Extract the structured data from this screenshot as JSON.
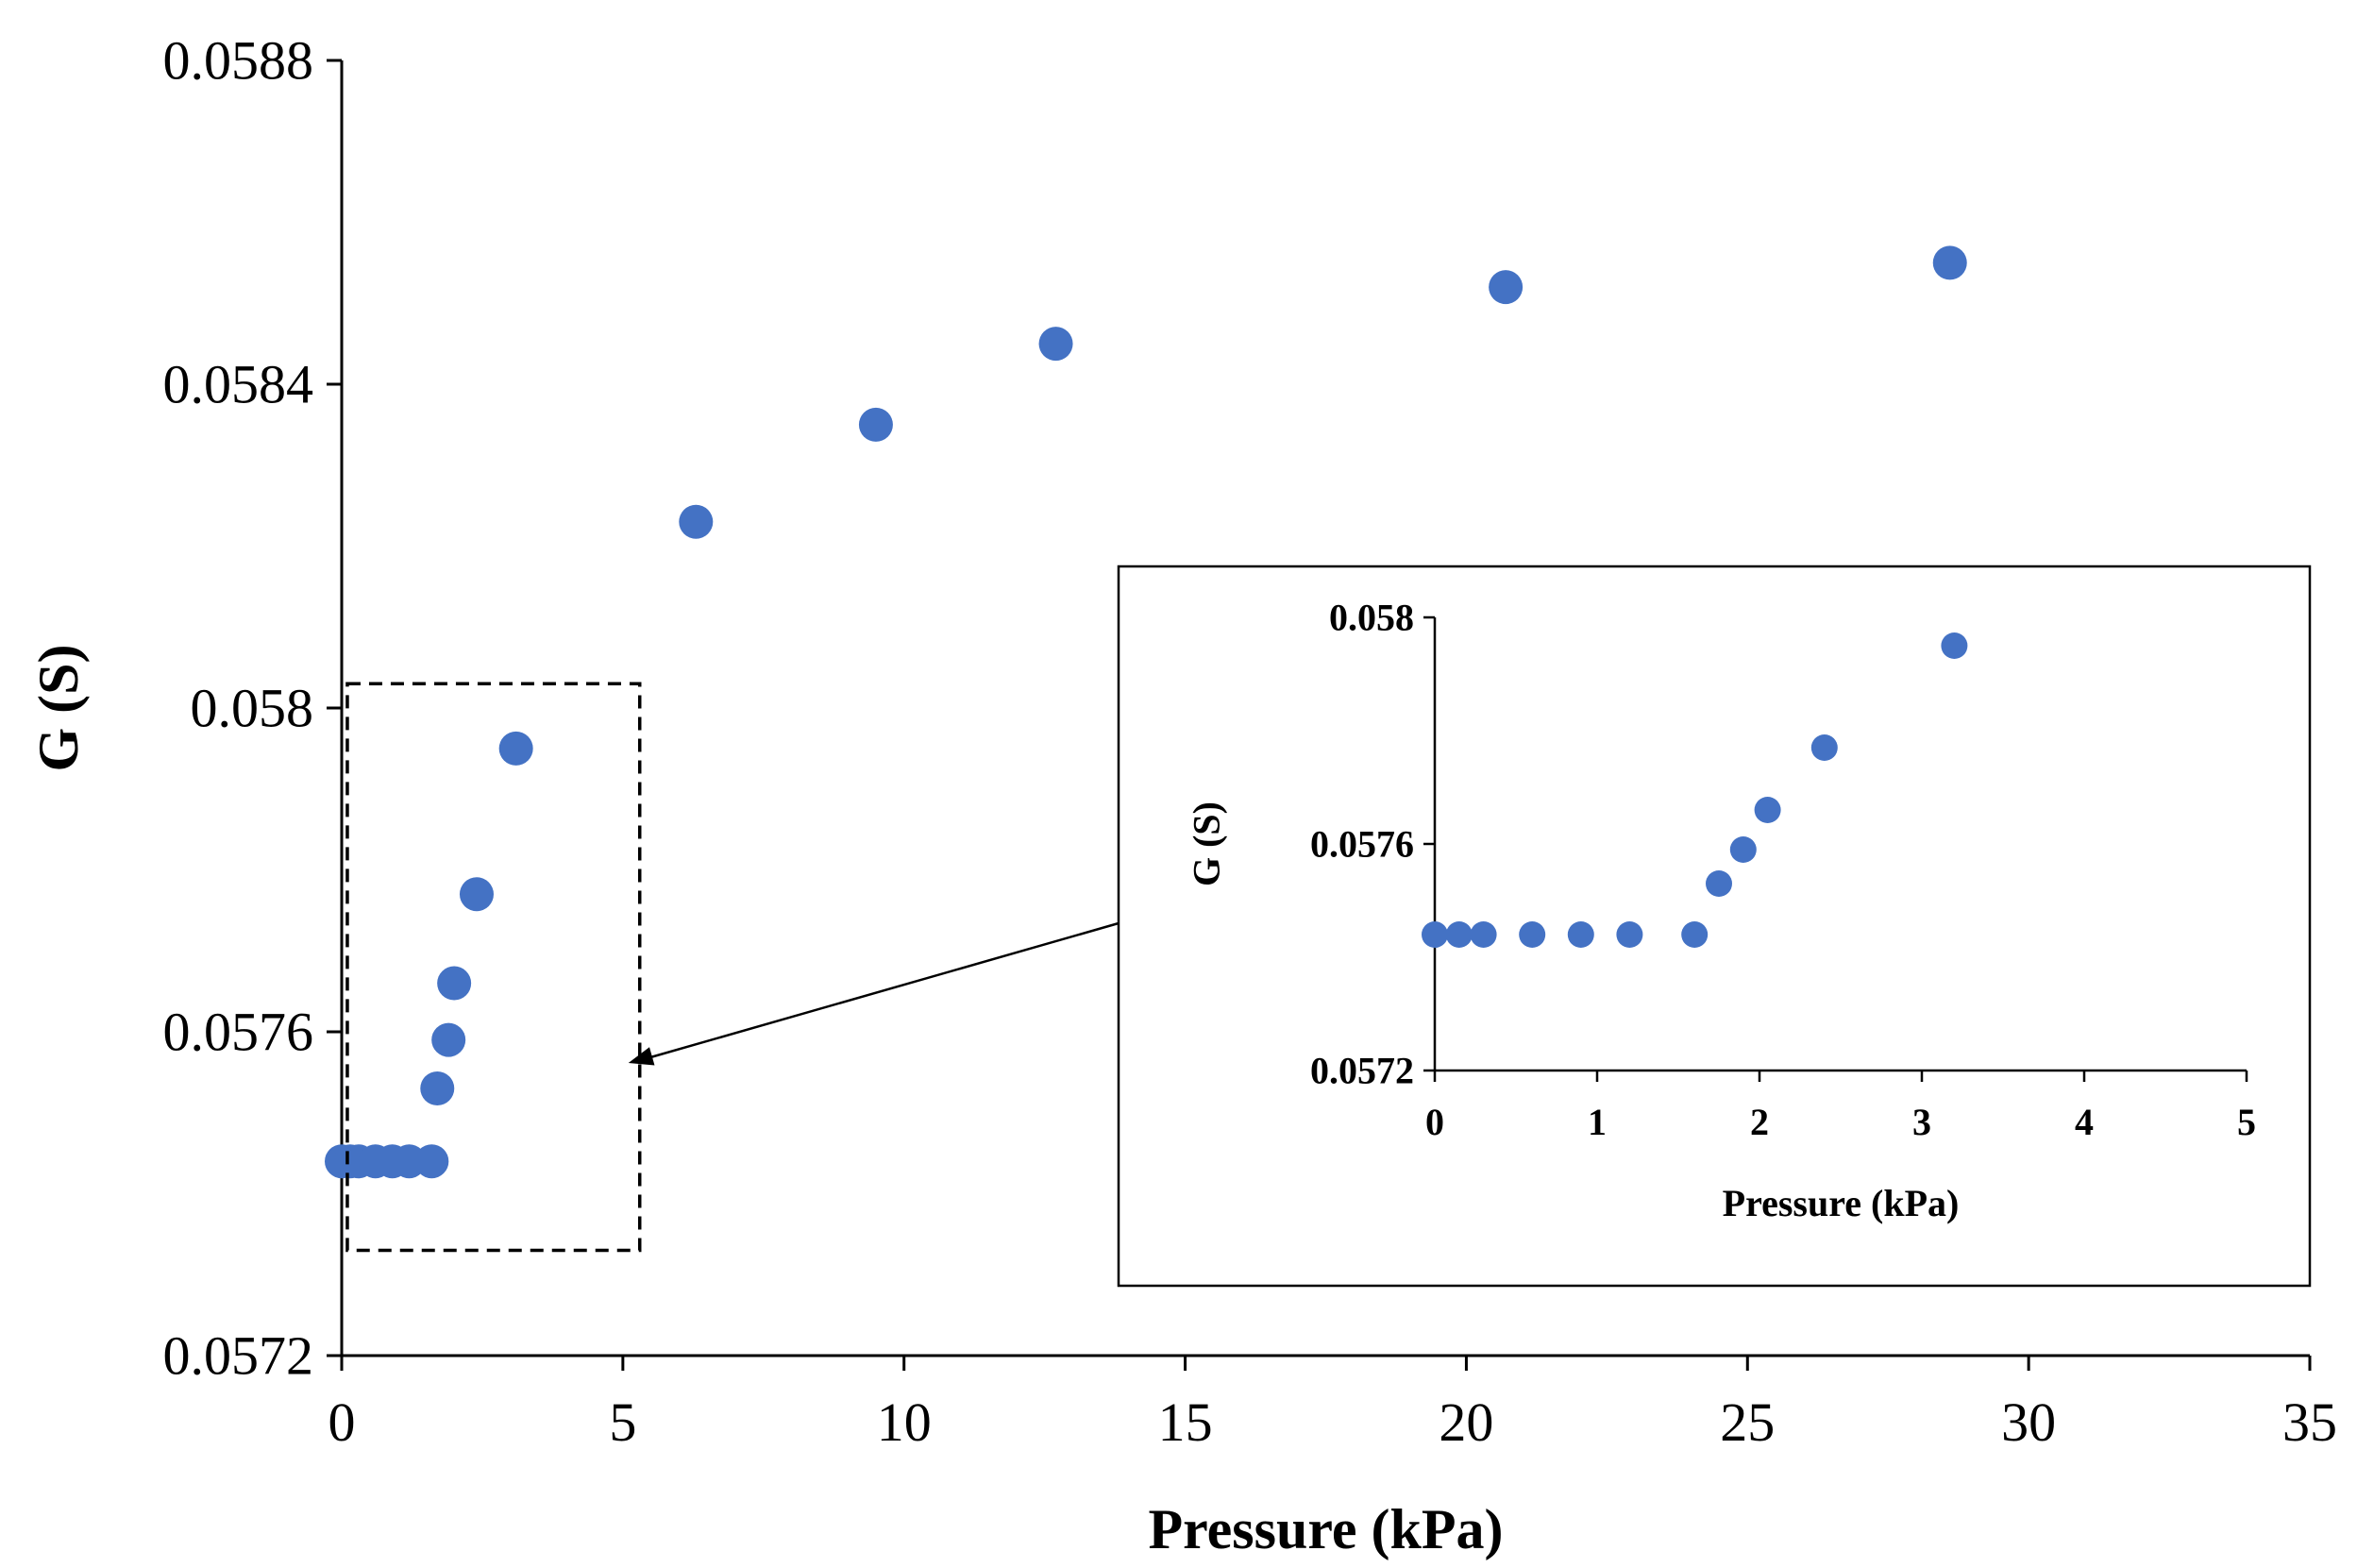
{
  "chart_data": [
    {
      "id": "main",
      "type": "scatter",
      "xlabel": "Pressure (kPa)",
      "ylabel": "G (S)",
      "xlim": [
        0,
        35
      ],
      "ylim": [
        0.0572,
        0.0588
      ],
      "x_ticks": [
        0,
        5,
        10,
        15,
        20,
        25,
        30,
        35
      ],
      "x_tick_labels": [
        "0",
        "5",
        "10",
        "15",
        "20",
        "25",
        "30",
        "35"
      ],
      "y_ticks": [
        0.0572,
        0.0576,
        0.058,
        0.0584,
        0.0588
      ],
      "y_tick_labels": [
        "0.0572",
        "0.0576",
        "0.058",
        "0.0584",
        "0.0588"
      ],
      "grid": false,
      "marker_color": "#4472C4",
      "zoom_region": {
        "x": [
          0.1,
          5.3
        ],
        "y": [
          0.05733,
          0.05803
        ]
      },
      "series": [
        {
          "name": "G",
          "points": [
            [
              0.0,
              0.05744
            ],
            [
              0.15,
              0.05744
            ],
            [
              0.3,
              0.05744
            ],
            [
              0.6,
              0.05744
            ],
            [
              0.9,
              0.05744
            ],
            [
              1.2,
              0.05744
            ],
            [
              1.6,
              0.05744
            ],
            [
              1.7,
              0.05753
            ],
            [
              1.9,
              0.05759
            ],
            [
              2.0,
              0.05766
            ],
            [
              2.4,
              0.05777
            ],
            [
              3.1,
              0.05795
            ],
            [
              6.3,
              0.05823
            ],
            [
              9.5,
              0.05835
            ],
            [
              12.7,
              0.05845
            ],
            [
              20.7,
              0.05852
            ],
            [
              28.6,
              0.05855
            ]
          ]
        }
      ]
    },
    {
      "id": "inset",
      "type": "scatter",
      "xlabel": "Pressure (kPa)",
      "ylabel": "G (S)",
      "xlim": [
        0,
        5
      ],
      "ylim": [
        0.0572,
        0.058
      ],
      "x_ticks": [
        0,
        1,
        2,
        3,
        4,
        5
      ],
      "x_tick_labels": [
        "0",
        "1",
        "2",
        "3",
        "4",
        "5"
      ],
      "y_ticks": [
        0.0572,
        0.0576,
        0.058
      ],
      "y_tick_labels": [
        "0.0572",
        "0.0576",
        "0.058"
      ],
      "grid": false,
      "marker_color": "#4472C4",
      "series": [
        {
          "name": "G",
          "points": [
            [
              0.0,
              0.05744
            ],
            [
              0.15,
              0.05744
            ],
            [
              0.3,
              0.05744
            ],
            [
              0.6,
              0.05744
            ],
            [
              0.9,
              0.05744
            ],
            [
              1.2,
              0.05744
            ],
            [
              1.6,
              0.05744
            ],
            [
              1.75,
              0.05753
            ],
            [
              1.9,
              0.05759
            ],
            [
              2.05,
              0.05766
            ],
            [
              2.4,
              0.05777
            ],
            [
              3.2,
              0.05795
            ]
          ]
        }
      ]
    }
  ]
}
